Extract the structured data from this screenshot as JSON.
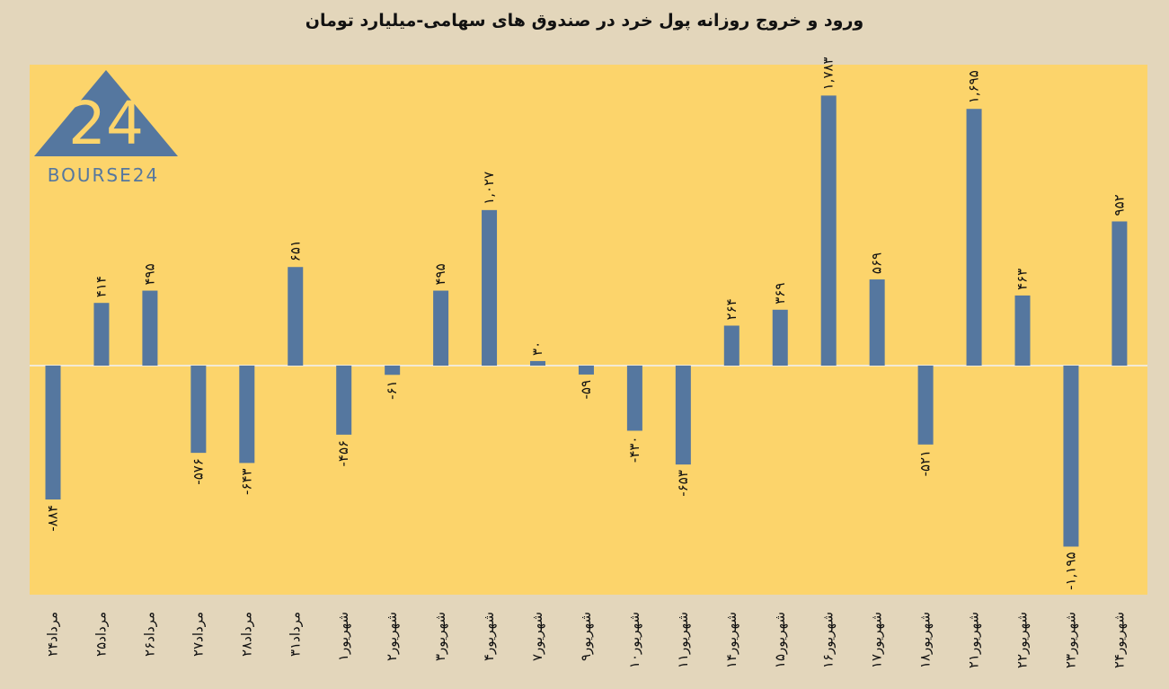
{
  "chart_data": {
    "type": "bar",
    "title": "ورود و خروج روزانه پول خرد در صندوق های سهامی-میلیارد تومان",
    "xlabel": "",
    "ylabel": "",
    "ylim": [
      -1500,
      2000
    ],
    "grid": false,
    "categories": [
      "۲۴مرداد",
      "۲۵مرداد",
      "۲۶مرداد",
      "۲۷مرداد",
      "۲۸مرداد",
      "۳۱مرداد",
      "۱شهریور",
      "۲شهریور",
      "۳شهریور",
      "۴شهریور",
      "۷شهریور",
      "۹شهریور",
      "۱۰شهریور",
      "۱۱شهریور",
      "۱۴شهریور",
      "۱۵شهریور",
      "۱۶شهریور",
      "۱۷شهریور",
      "۱۸شهریور",
      "۲۱شهریور",
      "۲۲شهریور",
      "۲۳شهریور",
      "۲۴شهریور"
    ],
    "values": [
      -884,
      414,
      495,
      -576,
      -643,
      651,
      -456,
      -61,
      495,
      1027,
      30,
      -59,
      -430,
      -653,
      264,
      369,
      1783,
      569,
      -521,
      1695,
      463,
      -1195,
      952
    ],
    "data_labels": [
      "-۸۸۴",
      "۴۱۴",
      "۴۹۵",
      "-۵۷۶",
      "-۶۴۳",
      "۶۵۱",
      "-۴۵۶",
      "-۶۱",
      "۴۹۵",
      "۱,۰۲۷",
      "۳۰",
      "-۵۹",
      "-۴۳۰",
      "-۶۵۳",
      "۲۶۴",
      "۳۶۹",
      "۱,۷۸۳",
      "۵۶۹",
      "-۵۲۱",
      "۱,۶۹۵",
      "۴۶۳",
      "-۱,۱۹۵",
      "۹۵۲"
    ],
    "bar_color": "#55779f",
    "plot_background": "#fcd46b",
    "page_background": "#e3d6bb"
  },
  "logo": {
    "text": "BOURSE24",
    "mark": "24",
    "color": "#55779f"
  }
}
